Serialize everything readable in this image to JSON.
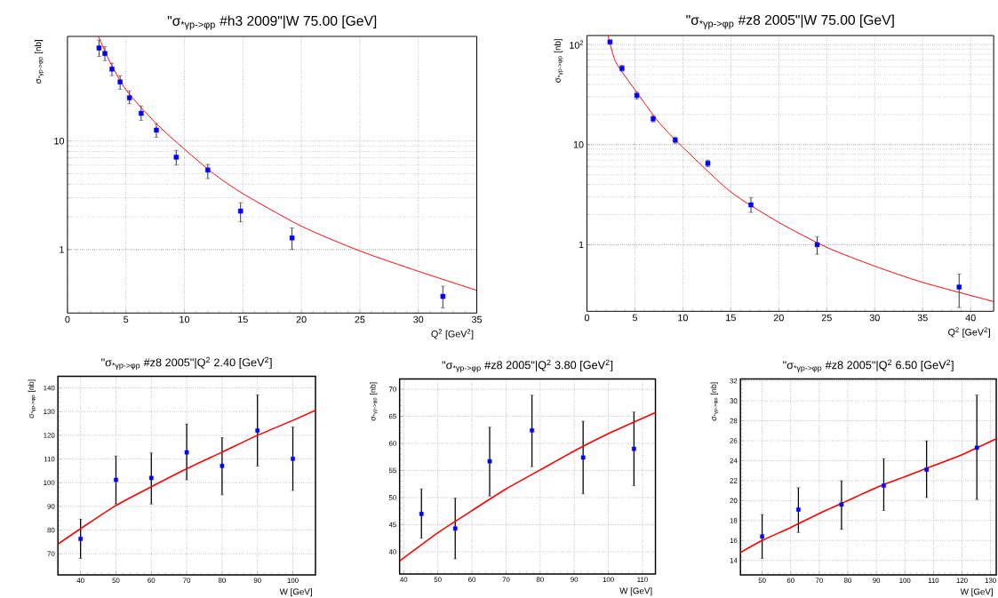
{
  "chart_data": [
    {
      "type": "scatter",
      "title": "\"σ$_{*γp->φp}$ #h3 2009\"|W 75.00 [GeV]",
      "xlabel": "Q$^{2}$ [GeV$^{2}$]",
      "ylabel": "σ$_{*γp->φp}$ [nb]",
      "xlim": [
        0,
        35
      ],
      "ylim": [
        0.26,
        92
      ],
      "xticks": [
        0,
        5,
        10,
        15,
        20,
        25,
        30,
        35
      ],
      "yticks": [
        1,
        10
      ],
      "log": "y",
      "grid": true,
      "marker": "square",
      "series": [
        {
          "color": "#0000ff",
          "x": [
            2.7,
            3.2,
            3.8,
            4.5,
            5.3,
            6.3,
            7.6,
            9.3,
            12.0,
            14.8,
            19.2,
            32.1
          ],
          "values": [
            72,
            64,
            46,
            35,
            25,
            18,
            12.6,
            7.1,
            5.4,
            2.26,
            1.28,
            0.37
          ],
          "errors": [
            [
              60,
              85
            ],
            [
              55,
              74
            ],
            [
              40,
              52
            ],
            [
              30,
              40
            ],
            [
              22,
              29
            ],
            [
              15.5,
              21
            ],
            [
              10.8,
              14.5
            ],
            [
              6,
              8.2
            ],
            [
              4.5,
              6.1
            ],
            [
              1.8,
              2.7
            ],
            [
              1.0,
              1.58
            ],
            [
              0.29,
              0.46
            ]
          ]
        },
        {
          "type": "line",
          "color": "#ff0000",
          "marker": "none",
          "x": [
            2.65,
            3.5,
            5,
            7.5,
            10,
            12.5,
            15,
            20,
            25,
            30,
            35
          ],
          "values": [
            92,
            57,
            29.6,
            14.8,
            8.4,
            5.0,
            3.27,
            1.64,
            0.97,
            0.63,
            0.42
          ]
        }
      ]
    },
    {
      "type": "scatter",
      "title": "\"σ$_{*γp->φp}$ #z8 2005\"|W 75.00 [GeV]",
      "xlabel": "Q$^{2}$ [GeV$^{2}$]",
      "ylabel": "σ$_{*γp->φp}$ [nb]",
      "xlim": [
        0,
        42.4
      ],
      "ylim": [
        0.216,
        123
      ],
      "xticks": [
        0,
        5,
        10,
        15,
        20,
        25,
        30,
        35,
        40
      ],
      "yticks": [
        1,
        10,
        {
          "value": 100,
          "label": "10$^{2}$"
        }
      ],
      "log": "y",
      "grid": true,
      "marker": "square",
      "series": [
        {
          "color": "#0000ff",
          "x": [
            2.4,
            3.65,
            5.2,
            6.9,
            9.2,
            12.6,
            17.1,
            24.0,
            38.8
          ],
          "values": [
            106,
            57.8,
            31,
            18.1,
            11.1,
            6.5,
            2.5,
            1.0,
            0.377
          ],
          "errors": [
            null,
            [
              54,
              62
            ],
            [
              28.5,
              33.5
            ],
            [
              16.8,
              19.5
            ],
            [
              10.3,
              11.9
            ],
            [
              6.0,
              7.0
            ],
            [
              2.1,
              2.95
            ],
            [
              0.8,
              1.2
            ],
            [
              0.235,
              0.51
            ]
          ]
        },
        {
          "type": "line",
          "color": "#ff0000",
          "marker": "none",
          "x": [
            2.2,
            3,
            5,
            7.5,
            10,
            15,
            20,
            25,
            30,
            35,
            42.4
          ],
          "values": [
            123,
            67,
            35.3,
            16.7,
            9.4,
            3.36,
            1.67,
            0.94,
            0.61,
            0.42,
            0.27
          ]
        }
      ]
    },
    {
      "type": "scatter",
      "title": "\"σ$_{*γp->φp}$ #z8 2005\"|Q$^{2}$  2.40 [GeV$^{2}$]",
      "xlabel": "W [GeV]",
      "ylabel": "σ$_{*γp->φp}$ [nb]",
      "xlim": [
        33.6,
        106.4
      ],
      "ylim": [
        61.1,
        144.9
      ],
      "xticks": [
        40,
        50,
        60,
        70,
        80,
        90,
        100
      ],
      "yticks": [
        70,
        80,
        90,
        100,
        110,
        120,
        130,
        140
      ],
      "grid": true,
      "marker": "square",
      "series": [
        {
          "color": "#0000ff",
          "x": [
            40,
            50,
            60,
            70,
            80,
            90,
            100
          ],
          "values": [
            76.3,
            101.2,
            102,
            112.8,
            107.1,
            122,
            110.1
          ],
          "errors": [
            [
              68,
              84.6
            ],
            [
              91,
              111.3
            ],
            [
              91,
              112.6
            ],
            [
              101.2,
              124.8
            ],
            [
              94.9,
              119
            ],
            [
              107,
              137
            ],
            [
              96.7,
              123.5
            ]
          ]
        },
        {
          "type": "line",
          "color": "#ff0000",
          "marker": "none",
          "x": [
            33.6,
            40,
            50,
            60,
            70,
            80,
            90,
            100,
            106.4
          ],
          "values": [
            74.1,
            80.6,
            90.4,
            98.3,
            105.9,
            112.9,
            120,
            126.3,
            130.6
          ]
        }
      ]
    },
    {
      "type": "scatter",
      "title": "\"σ$_{*γp->φp}$ #z8 2005\"|Q$^{2}$  3.80 [GeV$^{2}$]",
      "xlabel": "W [GeV]",
      "ylabel": "σ$_{*γp->φp}$ [nb]",
      "xlim": [
        38.8,
        113.8
      ],
      "ylim": [
        35.9,
        71.9
      ],
      "xticks": [
        40,
        50,
        60,
        70,
        80,
        90,
        100,
        110
      ],
      "yticks": [
        40,
        45,
        50,
        55,
        60,
        65,
        70
      ],
      "grid": true,
      "marker": "square",
      "series": [
        {
          "color": "#0000ff",
          "x": [
            45.2,
            55.1,
            65.2,
            77.6,
            92.6,
            107.5
          ],
          "values": [
            47.0,
            44.3,
            56.7,
            62.4,
            57.4,
            59.0
          ],
          "errors": [
            [
              42.5,
              51.6
            ],
            [
              38.7,
              49.9
            ],
            [
              50.3,
              63.0
            ],
            [
              55.7,
              68.9
            ],
            [
              50.7,
              64.1
            ],
            [
              52.2,
              65.8
            ]
          ]
        },
        {
          "type": "line",
          "color": "#ff0000",
          "marker": "none",
          "x": [
            38.8,
            50,
            60,
            70,
            80,
            90,
            100,
            113.8
          ],
          "values": [
            38.3,
            43.5,
            47.6,
            51.6,
            55.1,
            58.6,
            61.8,
            65.7
          ]
        }
      ]
    },
    {
      "type": "scatter",
      "title": "\"σ$_{*γp->φp}$ #z8 2005\"|Q$^{2}$  6.50 [GeV$^{2}$]",
      "xlabel": "W [GeV]",
      "ylabel": "σ$_{*γp->φp}$ [nb]",
      "xlim": [
        42.4,
        132.0
      ],
      "ylim": [
        12.55,
        32.2
      ],
      "xticks": [
        50,
        60,
        70,
        80,
        90,
        100,
        110,
        120,
        130
      ],
      "yticks": [
        14,
        16,
        18,
        20,
        22,
        24,
        26,
        28,
        30,
        32
      ],
      "grid": true,
      "marker": "square",
      "series": [
        {
          "color": "#0000ff",
          "x": [
            50,
            62.7,
            77.8,
            92.6,
            107.6,
            125.2
          ],
          "values": [
            16.4,
            19.1,
            19.6,
            21.5,
            23.1,
            25.3
          ],
          "errors": [
            [
              14.2,
              18.6
            ],
            [
              16.8,
              21.3
            ],
            [
              17.1,
              22.0
            ],
            [
              19.0,
              24.2
            ],
            [
              20.3,
              26.0
            ],
            [
              20.1,
              30.6
            ]
          ]
        },
        {
          "type": "line",
          "color": "#ff0000",
          "marker": "none",
          "x": [
            42.4,
            50,
            60,
            70,
            80,
            90,
            100,
            110,
            120,
            132
          ],
          "values": [
            14.8,
            16.0,
            17.3,
            18.7,
            20.0,
            21.3,
            22.4,
            23.5,
            24.6,
            26.2
          ]
        }
      ]
    }
  ]
}
